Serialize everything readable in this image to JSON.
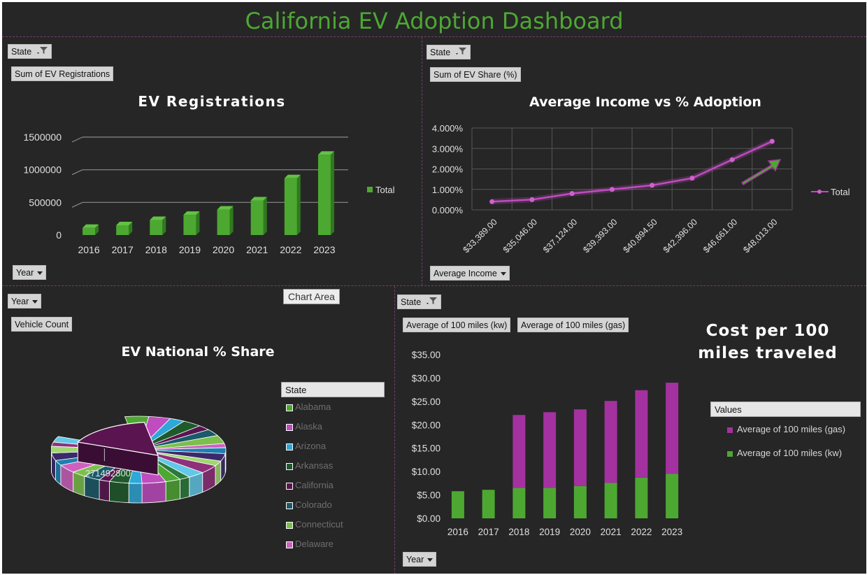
{
  "dashboard": {
    "title": "California EV Adoption Dashboard"
  },
  "colors": {
    "green": "#4da832",
    "purple": "#a431a0",
    "pink_line": "#c04cc0",
    "background": "#262626"
  },
  "panel1": {
    "filter_label": "State",
    "value_button": "Sum of EV Registrations",
    "axis_button": "Year",
    "chart_data": {
      "type": "bar",
      "title": "EV Registrations",
      "categories": [
        "2016",
        "2017",
        "2018",
        "2019",
        "2020",
        "2021",
        "2022",
        "2023"
      ],
      "series": [
        {
          "name": "Total",
          "values": [
            110000,
            150000,
            230000,
            310000,
            390000,
            530000,
            870000,
            1230000
          ]
        }
      ],
      "yticks": [
        "0",
        "500000",
        "1000000",
        "1500000"
      ],
      "ylim": [
        0,
        1500000
      ],
      "legend": "right"
    }
  },
  "panel2": {
    "filter_label": "State",
    "value_button": "Sum of EV Share (%)",
    "axis_button": "Average Income",
    "chart_data": {
      "type": "line",
      "title": "Average Income vs % Adoption",
      "categories": [
        "$33,389.00",
        "$35,046.00",
        "$37,124.00",
        "$39,393.00",
        "$40,894.50",
        "$42,396.00",
        "$46,661.00",
        "$48,013.00"
      ],
      "series": [
        {
          "name": "Total",
          "values": [
            0.4,
            0.5,
            0.8,
            1.0,
            1.2,
            1.55,
            2.45,
            3.35
          ]
        }
      ],
      "yticks": [
        "0.000%",
        "1.000%",
        "2.000%",
        "3.000%",
        "4.000%"
      ],
      "ylim": [
        0,
        4
      ],
      "legend": "right"
    }
  },
  "panel3": {
    "filter_label": "Year",
    "value_button": "Vehicle Count",
    "tooltip": "Chart Area",
    "chart_data": {
      "type": "pie",
      "title": "EV National % Share",
      "data_label": "271492800",
      "legend_title": "State",
      "legend": [
        "Alabama",
        "Alaska",
        "Arizona",
        "Arkansas",
        "California",
        "Colorado",
        "Connecticut",
        "Delaware"
      ],
      "legend_colors": [
        "#4da832",
        "#c04cc0",
        "#2ea8d8",
        "#1e5a2a",
        "#5a1450",
        "#1a5a6a",
        "#7ac04a",
        "#d060c0"
      ]
    }
  },
  "panel4": {
    "filter_label": "State",
    "value_button_kw": "Average of 100 miles (kw)",
    "value_button_gas": "Average of 100 miles (gas)",
    "axis_button": "Year",
    "chart_data": {
      "type": "bar",
      "title": "Cost per 100 miles traveled",
      "stacked": true,
      "categories": [
        "2016",
        "2017",
        "2018",
        "2019",
        "2020",
        "2021",
        "2022",
        "2023"
      ],
      "series": [
        {
          "name": "Average of 100 miles (kw)",
          "values": [
            5.8,
            6.1,
            6.5,
            6.5,
            6.9,
            7.6,
            8.7,
            9.5
          ]
        },
        {
          "name": "Average of 100 miles (gas)",
          "values": [
            0,
            0,
            15.6,
            16.2,
            16.4,
            17.5,
            18.7,
            19.5
          ]
        }
      ],
      "yticks": [
        "$0.00",
        "$5.00",
        "$10.00",
        "$15.00",
        "$20.00",
        "$25.00",
        "$30.00",
        "$35.00"
      ],
      "ylim": [
        0,
        35
      ],
      "legend_title": "Values",
      "legend": "right"
    }
  }
}
